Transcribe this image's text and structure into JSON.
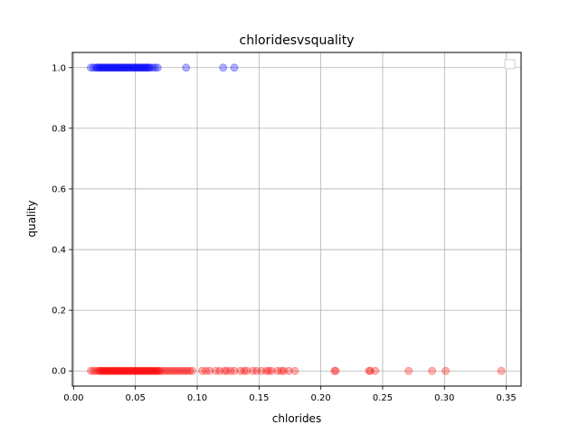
{
  "chart_data": {
    "type": "scatter",
    "title": "chloridesvsquality",
    "xlabel": "chlorides",
    "ylabel": "quality",
    "xlim": [
      -0.001,
      0.362
    ],
    "ylim": [
      -0.05,
      1.05
    ],
    "xticks": [
      0.0,
      0.05,
      0.1,
      0.15,
      0.2,
      0.25,
      0.3,
      0.35
    ],
    "xtick_labels": [
      "0.00",
      "0.05",
      "0.10",
      "0.15",
      "0.20",
      "0.25",
      "0.30",
      "0.35"
    ],
    "yticks": [
      0.0,
      0.2,
      0.4,
      0.6,
      0.8,
      1.0
    ],
    "ytick_labels": [
      "0.0",
      "0.2",
      "0.4",
      "0.6",
      "0.8",
      "1.0"
    ],
    "grid": true,
    "legend": "top-right",
    "point_alpha": 0.3,
    "series": [
      {
        "color": "#0000ff",
        "points": [
          [
            0.014,
            1
          ],
          [
            0.016,
            1
          ],
          [
            0.018,
            1
          ],
          [
            0.019,
            1
          ],
          [
            0.02,
            1
          ],
          [
            0.021,
            1
          ],
          [
            0.022,
            1
          ],
          [
            0.023,
            1
          ],
          [
            0.024,
            1
          ],
          [
            0.025,
            1
          ],
          [
            0.026,
            1
          ],
          [
            0.027,
            1
          ],
          [
            0.028,
            1
          ],
          [
            0.029,
            1
          ],
          [
            0.03,
            1
          ],
          [
            0.031,
            1
          ],
          [
            0.032,
            1
          ],
          [
            0.033,
            1
          ],
          [
            0.034,
            1
          ],
          [
            0.035,
            1
          ],
          [
            0.036,
            1
          ],
          [
            0.037,
            1
          ],
          [
            0.038,
            1
          ],
          [
            0.039,
            1
          ],
          [
            0.04,
            1
          ],
          [
            0.041,
            1
          ],
          [
            0.042,
            1
          ],
          [
            0.043,
            1
          ],
          [
            0.044,
            1
          ],
          [
            0.045,
            1
          ],
          [
            0.046,
            1
          ],
          [
            0.047,
            1
          ],
          [
            0.048,
            1
          ],
          [
            0.049,
            1
          ],
          [
            0.05,
            1
          ],
          [
            0.051,
            1
          ],
          [
            0.052,
            1
          ],
          [
            0.053,
            1
          ],
          [
            0.054,
            1
          ],
          [
            0.055,
            1
          ],
          [
            0.056,
            1
          ],
          [
            0.057,
            1
          ],
          [
            0.058,
            1
          ],
          [
            0.059,
            1
          ],
          [
            0.06,
            1
          ],
          [
            0.061,
            1
          ],
          [
            0.062,
            1
          ],
          [
            0.064,
            1
          ],
          [
            0.066,
            1
          ],
          [
            0.068,
            1
          ],
          [
            0.091,
            1
          ],
          [
            0.121,
            1
          ],
          [
            0.13,
            1
          ]
        ]
      },
      {
        "color": "#ff0000",
        "points": [
          [
            0.014,
            0
          ],
          [
            0.016,
            0
          ],
          [
            0.018,
            0
          ],
          [
            0.02,
            0
          ],
          [
            0.021,
            0
          ],
          [
            0.022,
            0
          ],
          [
            0.023,
            0
          ],
          [
            0.024,
            0
          ],
          [
            0.025,
            0
          ],
          [
            0.026,
            0
          ],
          [
            0.027,
            0
          ],
          [
            0.028,
            0
          ],
          [
            0.029,
            0
          ],
          [
            0.03,
            0
          ],
          [
            0.031,
            0
          ],
          [
            0.032,
            0
          ],
          [
            0.033,
            0
          ],
          [
            0.034,
            0
          ],
          [
            0.035,
            0
          ],
          [
            0.036,
            0
          ],
          [
            0.037,
            0
          ],
          [
            0.038,
            0
          ],
          [
            0.039,
            0
          ],
          [
            0.04,
            0
          ],
          [
            0.041,
            0
          ],
          [
            0.042,
            0
          ],
          [
            0.043,
            0
          ],
          [
            0.044,
            0
          ],
          [
            0.045,
            0
          ],
          [
            0.046,
            0
          ],
          [
            0.047,
            0
          ],
          [
            0.048,
            0
          ],
          [
            0.049,
            0
          ],
          [
            0.05,
            0
          ],
          [
            0.051,
            0
          ],
          [
            0.052,
            0
          ],
          [
            0.053,
            0
          ],
          [
            0.054,
            0
          ],
          [
            0.055,
            0
          ],
          [
            0.056,
            0
          ],
          [
            0.057,
            0
          ],
          [
            0.058,
            0
          ],
          [
            0.059,
            0
          ],
          [
            0.06,
            0
          ],
          [
            0.061,
            0
          ],
          [
            0.062,
            0
          ],
          [
            0.063,
            0
          ],
          [
            0.064,
            0
          ],
          [
            0.065,
            0
          ],
          [
            0.066,
            0
          ],
          [
            0.067,
            0
          ],
          [
            0.068,
            0
          ],
          [
            0.069,
            0
          ],
          [
            0.07,
            0
          ],
          [
            0.072,
            0
          ],
          [
            0.074,
            0
          ],
          [
            0.076,
            0
          ],
          [
            0.078,
            0
          ],
          [
            0.08,
            0
          ],
          [
            0.082,
            0
          ],
          [
            0.084,
            0
          ],
          [
            0.086,
            0
          ],
          [
            0.088,
            0
          ],
          [
            0.09,
            0
          ],
          [
            0.092,
            0
          ],
          [
            0.094,
            0
          ],
          [
            0.096,
            0
          ],
          [
            0.104,
            0
          ],
          [
            0.107,
            0
          ],
          [
            0.11,
            0
          ],
          [
            0.115,
            0
          ],
          [
            0.118,
            0
          ],
          [
            0.122,
            0
          ],
          [
            0.124,
            0
          ],
          [
            0.127,
            0
          ],
          [
            0.13,
            0
          ],
          [
            0.135,
            0
          ],
          [
            0.138,
            0
          ],
          [
            0.14,
            0
          ],
          [
            0.145,
            0
          ],
          [
            0.148,
            0
          ],
          [
            0.152,
            0
          ],
          [
            0.156,
            0
          ],
          [
            0.158,
            0
          ],
          [
            0.16,
            0
          ],
          [
            0.165,
            0
          ],
          [
            0.168,
            0
          ],
          [
            0.17,
            0
          ],
          [
            0.174,
            0
          ],
          [
            0.179,
            0
          ],
          [
            0.211,
            0
          ],
          [
            0.212,
            0
          ],
          [
            0.239,
            0
          ],
          [
            0.24,
            0
          ],
          [
            0.244,
            0
          ],
          [
            0.271,
            0
          ],
          [
            0.29,
            0
          ],
          [
            0.301,
            0
          ],
          [
            0.346,
            0
          ]
        ]
      }
    ]
  }
}
